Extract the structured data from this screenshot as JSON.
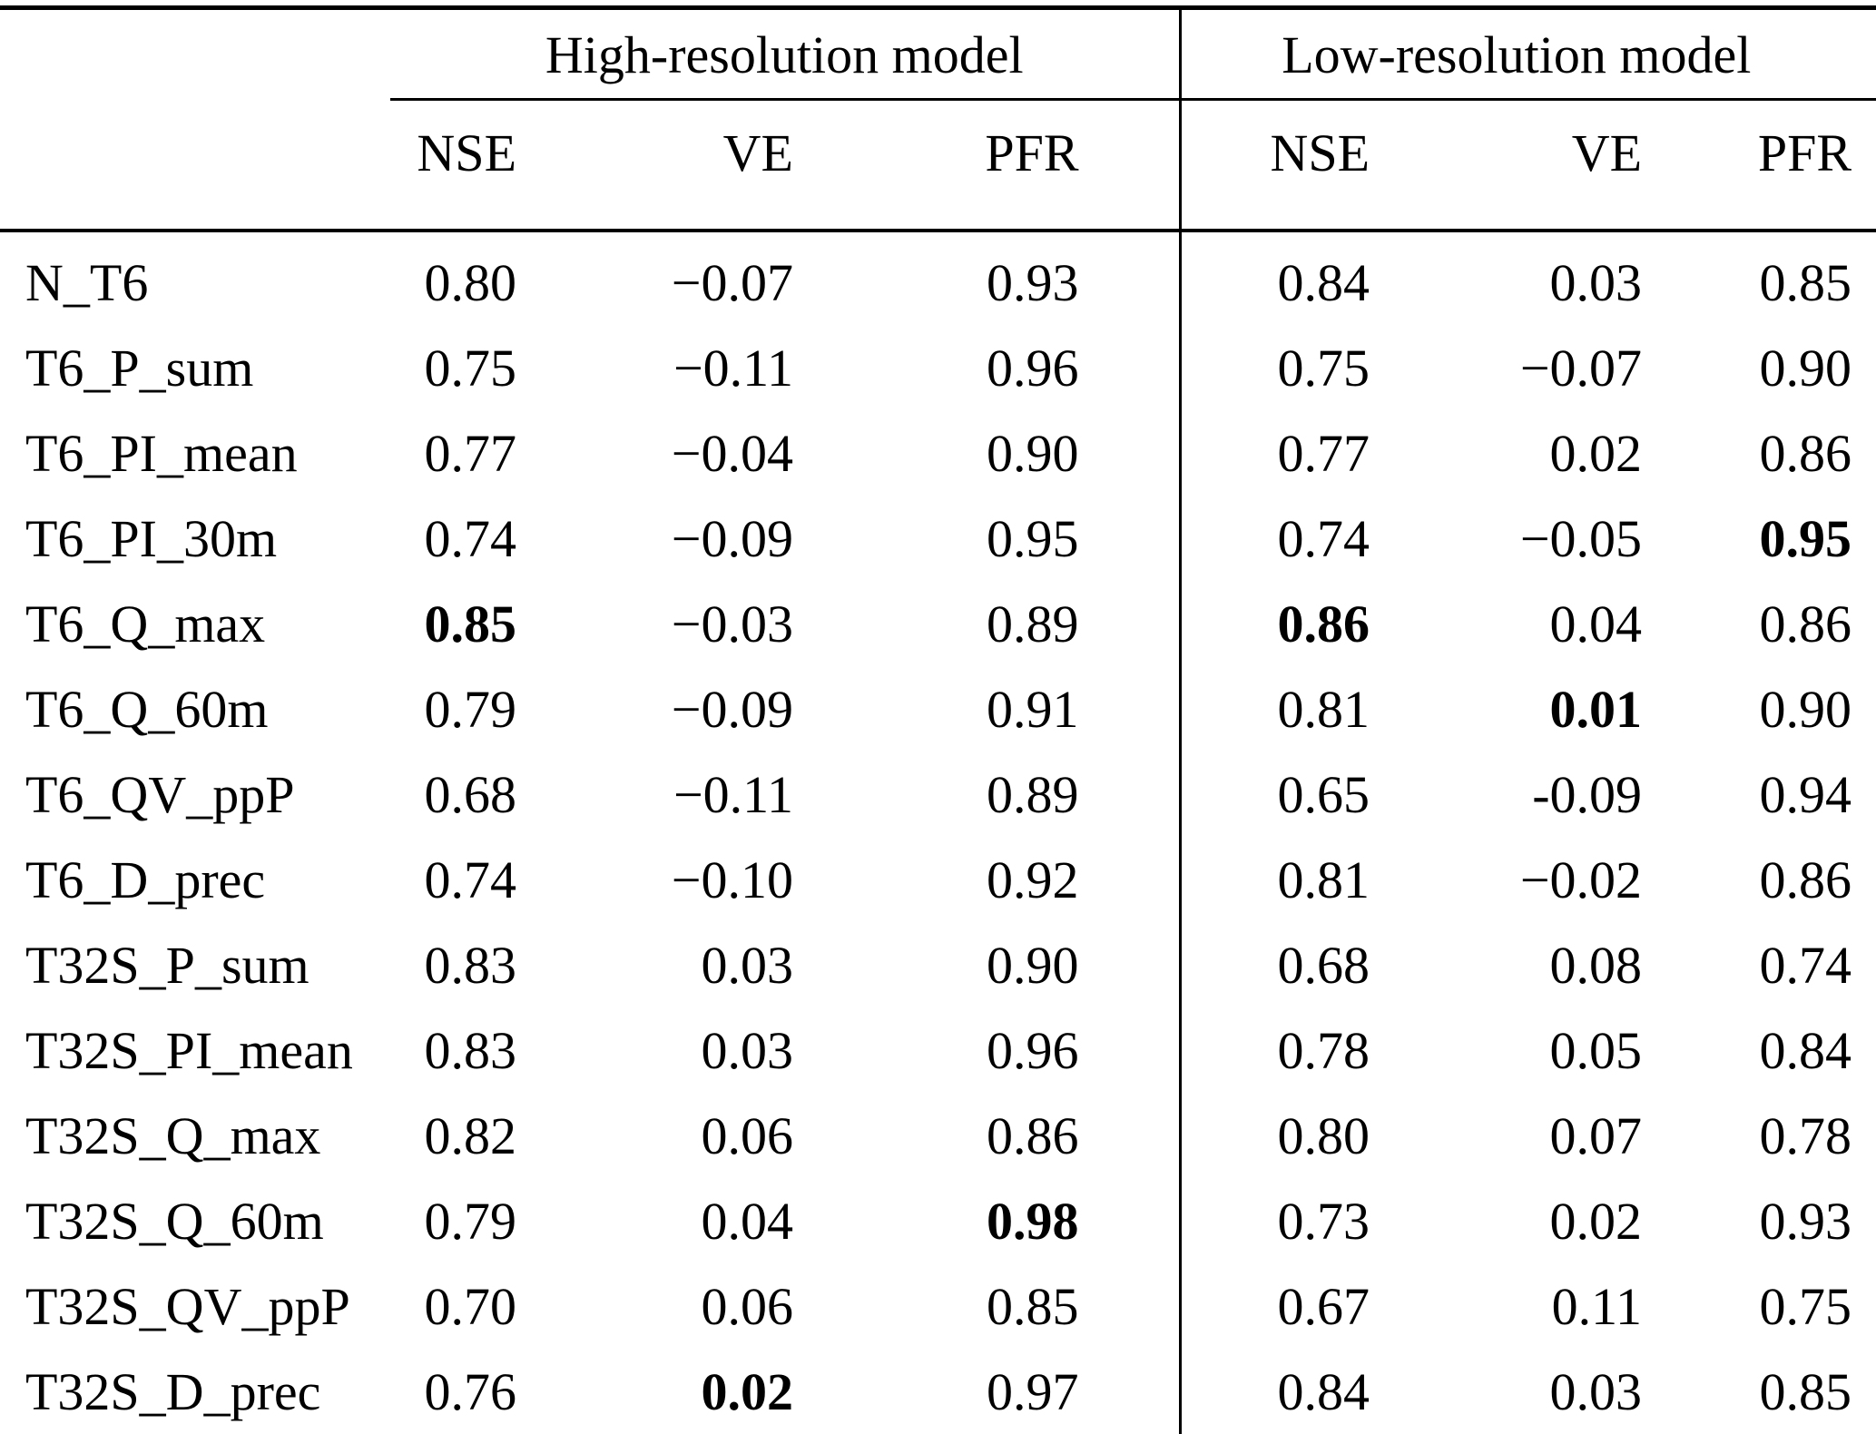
{
  "table": {
    "col_groups": [
      {
        "label": "High-resolution model"
      },
      {
        "label": "Low-resolution model"
      }
    ],
    "sub_headers": [
      "NSE",
      "VE",
      "PFR",
      "NSE",
      "VE",
      "PFR"
    ],
    "rows": [
      {
        "label": "N_T6",
        "values": [
          "0.80",
          "−0.07",
          "0.93",
          "0.84",
          "0.03",
          "0.85"
        ],
        "bold": []
      },
      {
        "label": "T6_P_sum",
        "values": [
          "0.75",
          "−0.11",
          "0.96",
          "0.75",
          "−0.07",
          "0.90"
        ],
        "bold": []
      },
      {
        "label": "T6_PI_mean",
        "values": [
          "0.77",
          "−0.04",
          "0.90",
          "0.77",
          "0.02",
          "0.86"
        ],
        "bold": []
      },
      {
        "label": "T6_PI_30m",
        "values": [
          "0.74",
          "−0.09",
          "0.95",
          "0.74",
          "−0.05",
          "0.95"
        ],
        "bold": [
          5
        ]
      },
      {
        "label": "T6_Q_max",
        "values": [
          "0.85",
          "−0.03",
          "0.89",
          "0.86",
          "0.04",
          "0.86"
        ],
        "bold": [
          0,
          3
        ]
      },
      {
        "label": "T6_Q_60m",
        "values": [
          "0.79",
          "−0.09",
          "0.91",
          "0.81",
          "0.01",
          "0.90"
        ],
        "bold": [
          4
        ]
      },
      {
        "label": "T6_QV_ppP",
        "values": [
          "0.68",
          "−0.11",
          "0.89",
          "0.65",
          "-0.09",
          "0.94"
        ],
        "bold": []
      },
      {
        "label": "T6_D_prec",
        "values": [
          "0.74",
          "−0.10",
          "0.92",
          "0.81",
          "−0.02",
          "0.86"
        ],
        "bold": []
      },
      {
        "label": "T32S_P_sum",
        "values": [
          "0.83",
          "0.03",
          "0.90",
          "0.68",
          "0.08",
          "0.74"
        ],
        "bold": []
      },
      {
        "label": "T32S_PI_mean",
        "values": [
          "0.83",
          "0.03",
          "0.96",
          "0.78",
          "0.05",
          "0.84"
        ],
        "bold": []
      },
      {
        "label": "T32S_Q_max",
        "values": [
          "0.82",
          "0.06",
          "0.86",
          "0.80",
          "0.07",
          "0.78"
        ],
        "bold": []
      },
      {
        "label": "T32S_Q_60m",
        "values": [
          "0.79",
          "0.04",
          "0.98",
          "0.73",
          "0.02",
          "0.93"
        ],
        "bold": [
          2
        ]
      },
      {
        "label": "T32S_QV_ppP",
        "values": [
          "0.70",
          "0.06",
          "0.85",
          "0.67",
          "0.11",
          "0.75"
        ],
        "bold": []
      },
      {
        "label": "T32S_D_prec",
        "values": [
          "0.76",
          "0.02",
          "0.97",
          "0.84",
          "0.03",
          "0.85"
        ],
        "bold": [
          1
        ]
      }
    ]
  }
}
